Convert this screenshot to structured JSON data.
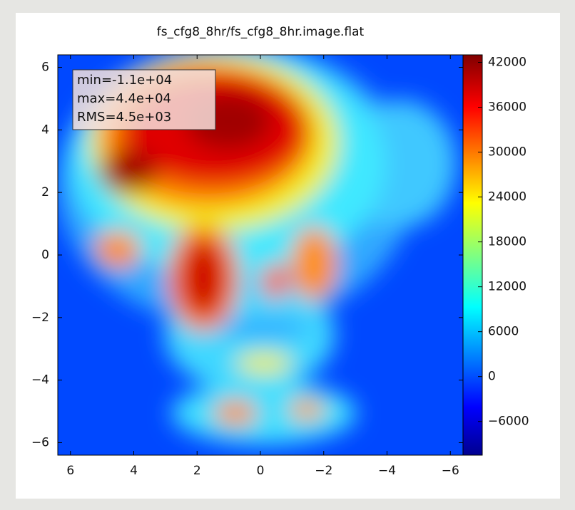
{
  "chart_data": {
    "type": "image",
    "title": "fs_cfg8_8hr/fs_cfg8_8hr.image.flat",
    "xlim": [
      6.4,
      -6.4
    ],
    "xticks": [
      6,
      4,
      2,
      0,
      {
        "value": -2,
        "label": "−2"
      },
      {
        "value": -4,
        "label": "−4"
      },
      {
        "value": -6,
        "label": "−6"
      }
    ],
    "ylim": [
      -6.4,
      6.4
    ],
    "yticks": [
      6,
      4,
      2,
      0,
      {
        "value": -2,
        "label": "−2"
      },
      {
        "value": -4,
        "label": "−4"
      },
      {
        "value": -6,
        "label": "−6"
      }
    ],
    "clim": [
      -10500,
      43000
    ],
    "cticks": [
      42000,
      36000,
      30000,
      24000,
      18000,
      12000,
      6000,
      0,
      {
        "value": -6000,
        "label": "−6000"
      }
    ],
    "colormap": "jet",
    "annotations": [
      "min=-1.1e+04",
      "max=4.4e+04",
      "RMS=4.5e+03"
    ]
  }
}
